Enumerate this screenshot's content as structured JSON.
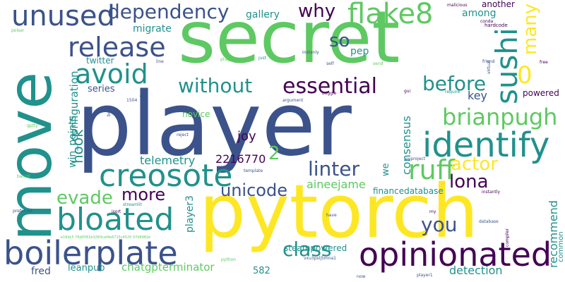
{
  "palette": {
    "dark_purple": "#440154",
    "indigo": "#3b528b",
    "teal": "#21918c",
    "green": "#5ec962",
    "yellow": "#fde725"
  },
  "words": {
    "player": "player",
    "pytorch": "pytorch",
    "secret": "secret",
    "move": "move",
    "boilerplate": "boilerplate",
    "opinionated": "opinionated",
    "identify": "identify",
    "creosote": "creosote",
    "bloated": "bloated",
    "unused": "unused",
    "dependency": "dependency",
    "flake8": "flake8",
    "release": "release",
    "avoid": "avoid",
    "sushi": "sushi",
    "ruff": "ruff",
    "brianpugh": "brianpugh",
    "essential": "essential",
    "without": "without",
    "before": "before",
    "zero": "0",
    "many": "many",
    "so": "so",
    "why": "why",
    "linter": "linter",
    "actor": "actor",
    "lona": "lona",
    "unicode": "unicode",
    "more": "more",
    "evade": "evade",
    "you": "you",
    "class": "class",
    "hook": "hook",
    "configuration": "configuration",
    "win_points": "win_points",
    "telemetry": "telemetry",
    "joy": "joy",
    "n2216770": "2216770",
    "two": "2",
    "consensus": "consensus",
    "recommend": "recommend",
    "detection": "detection",
    "steampowered": "steampowered",
    "chatgpterminator": "chatgpterminator",
    "leanpub": "leanpub",
    "fred": "fred",
    "player3": "player3",
    "financedatabase": "financedatabase",
    "aineejame": "aineejame",
    "key": "key",
    "powered": "powered",
    "migrate": "migrate",
    "gallery": "gallery",
    "among": "among",
    "pep": "pep",
    "twitter": "twitter",
    "series": "series",
    "textual": "textual",
    "novice": "novice",
    "another": "another",
    "n582": "582",
    "we": "we",
    "common": "common",
    "malicious": "malicious",
    "conda": "conda",
    "hardcode": "hardcode",
    "free": "free",
    "friend": "friend",
    "virtual": "virtual",
    "compiler": "compiler",
    "gui": "gui",
    "require": "require",
    "plugin": "plugin",
    "just": "just",
    "instanly": "instanly",
    "self": "self",
    "send": "send",
    "line": "line",
    "boggle": "boggle",
    "argument": "argument",
    "n1504": "1504",
    "book": "book",
    "reject": "reject",
    "template": "template",
    "pyproject": "pyproject",
    "instantly": "instantly",
    "streamlit": "streamlit",
    "isort": "isort",
    "have": "have",
    "my": "my",
    "database": "database",
    "python": "python",
    "vxu3pslj": "vxu3pslj5mna1",
    "now": "now",
    "player1": "player1",
    "hash": "e18dc5 76d0581b3283caf4e6715c4525 07d6982e",
    "gptty": "gptty",
    "bandit": "bandit",
    "preferred": "preferred",
    "polser": "polser"
  }
}
